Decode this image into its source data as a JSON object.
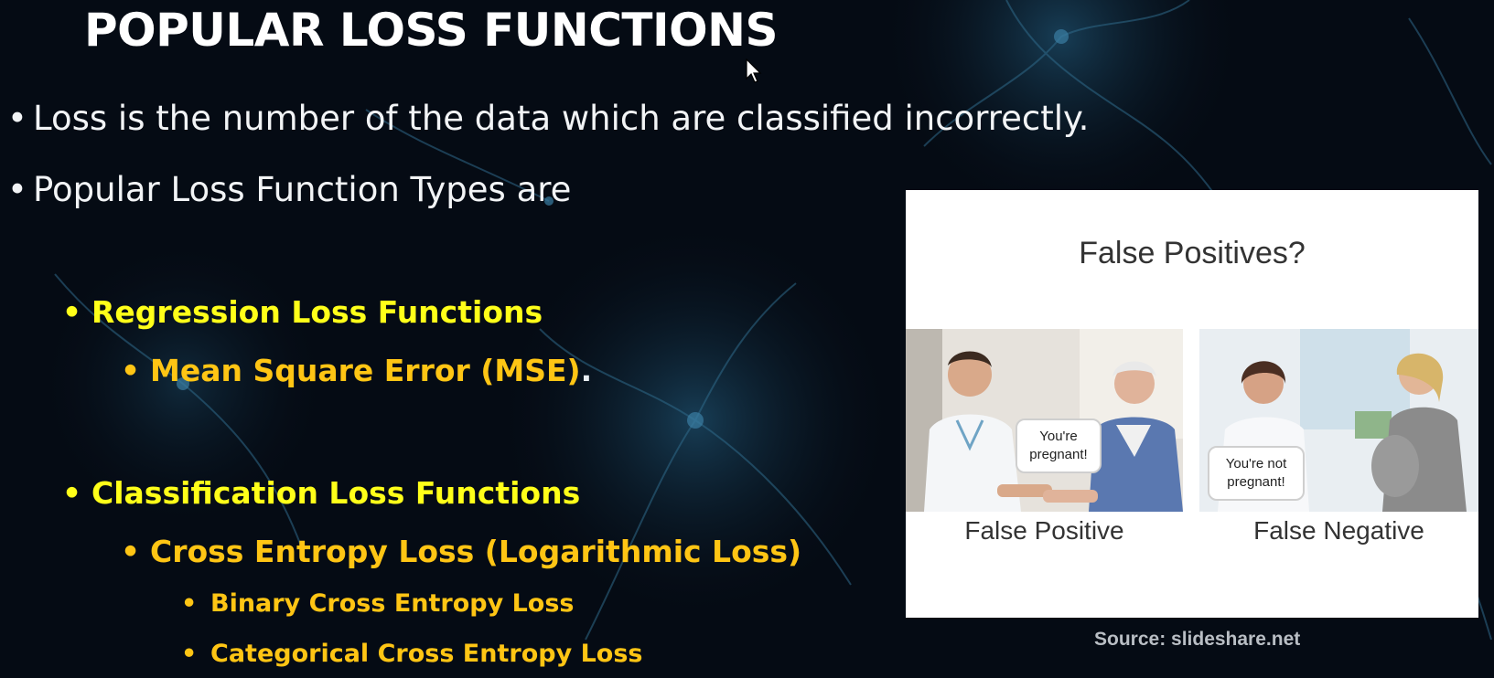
{
  "slide": {
    "title": "POPULAR LOSS FUNCTIONS",
    "bullets": [
      "Loss is the number of the data which are classified incorrectly.",
      "Popular Loss Function Types are"
    ],
    "regression": {
      "heading": "Regression Loss Functions",
      "items": [
        "Mean Square Error (MSE)"
      ],
      "item_suffix": "."
    },
    "classification": {
      "heading": "Classification Loss Functions",
      "item": "Cross Entropy Loss (Logarithmic Loss)",
      "subitems": [
        "Binary Cross Entropy Loss",
        "Categorical Cross Entropy Loss"
      ]
    },
    "bullet_glyph": "•"
  },
  "figure": {
    "title": "False Positives?",
    "left": {
      "speech": "You're pregnant!",
      "caption": "False Positive"
    },
    "right": {
      "speech": "You're not pregnant!",
      "caption": "False Negative"
    },
    "source": "Source: slideshare.net"
  },
  "colors": {
    "background": "#050b14",
    "level2": "#ffff19",
    "level3": "#ffc514",
    "text": "#f2f4f6"
  }
}
